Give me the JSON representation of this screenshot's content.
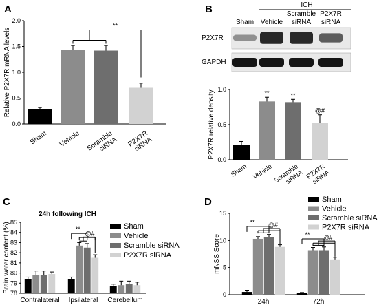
{
  "colors": {
    "sham": "#000000",
    "vehicle": "#8c8c8c",
    "scramble": "#6e6e6e",
    "p2x7r": "#d2d2d2",
    "blot_bg": "#e9e9e9",
    "band": "#151515"
  },
  "chart_data": [
    {
      "panel": "A",
      "type": "bar",
      "ylabel": "Relative P2X7R mRNA levels",
      "ylim": [
        0,
        2.0
      ],
      "yticks": [
        "0.0",
        "0.5",
        "1.0",
        "1.5",
        "2.0"
      ],
      "categories": [
        "Sham",
        "Vehicle",
        "Scramble siRNA",
        "P2X7R siRNA"
      ],
      "category_lines": [
        [
          "Sham"
        ],
        [
          "Vehicle"
        ],
        [
          "Scramble",
          "siRNA"
        ],
        [
          "P2X7R",
          "siRNA"
        ]
      ],
      "values": [
        0.28,
        1.44,
        1.42,
        0.7
      ],
      "errors": [
        0.04,
        0.08,
        0.1,
        0.09
      ],
      "significance": [
        "**"
      ]
    },
    {
      "panel": "B",
      "type": "bar",
      "ylabel": "P2X7R relative density",
      "ylim": [
        0,
        1.0
      ],
      "yticks": [
        "0.0",
        "0.5",
        "1.0"
      ],
      "categories": [
        "Sham",
        "Vehicle",
        "Scramble siRNA",
        "P2X7R siRNA"
      ],
      "category_lines": [
        [
          "Sham"
        ],
        [
          "Vehicle"
        ],
        [
          "Scramble",
          "siRNA"
        ],
        [
          "P2X7R",
          "siRNA"
        ]
      ],
      "values": [
        0.21,
        0.83,
        0.82,
        0.52
      ],
      "errors": [
        0.05,
        0.06,
        0.04,
        0.12
      ],
      "bar_labels": [
        "",
        "**",
        "**",
        "@#"
      ],
      "blot": {
        "group_label": "ICH",
        "lane_headers": [
          [
            "Sham"
          ],
          [
            "Vehicle"
          ],
          [
            "Scramble",
            "siRNA"
          ],
          [
            "P2X7R",
            "siRNA"
          ]
        ],
        "bands": [
          "P2X7R",
          "GAPDH"
        ]
      }
    },
    {
      "panel": "C",
      "type": "bar",
      "title": "24h following ICH",
      "ylabel": "Brain water content (%)",
      "ylim": [
        78,
        85
      ],
      "yticks": [
        "78",
        "79",
        "80",
        "81",
        "82",
        "83",
        "84",
        "85"
      ],
      "categories": [
        "Contralateral",
        "Ipsilateral",
        "Cerebellum"
      ],
      "legend_position": "top-right",
      "series": [
        {
          "name": "Sham",
          "values": [
            79.4,
            79.4,
            78.7
          ],
          "errors": [
            0.2,
            0.2,
            0.2
          ]
        },
        {
          "name": "Vehicle",
          "values": [
            79.8,
            82.7,
            78.8
          ],
          "errors": [
            0.4,
            0.3,
            0.4
          ]
        },
        {
          "name": "Scramble siRNA",
          "values": [
            79.8,
            82.5,
            78.9
          ],
          "errors": [
            0.4,
            0.4,
            0.3
          ]
        },
        {
          "name": "P2X7R siRNA",
          "values": [
            79.9,
            81.5,
            78.8
          ],
          "errors": [
            0.2,
            0.3,
            0.3
          ]
        }
      ],
      "significance": [
        "**",
        "@#"
      ]
    },
    {
      "panel": "D",
      "type": "bar",
      "ylabel": "mNSS Score",
      "ylim": [
        0,
        15
      ],
      "yticks": [
        "0",
        "5",
        "10",
        "15"
      ],
      "categories": [
        "24h",
        "72h"
      ],
      "legend_position": "top-right",
      "series": [
        {
          "name": "Sham",
          "values": [
            0.5,
            0.3
          ],
          "errors": [
            0.2,
            0.1
          ]
        },
        {
          "name": "Vehicle",
          "values": [
            10.3,
            8.2
          ],
          "errors": [
            0.4,
            0.5
          ]
        },
        {
          "name": "Scramble siRNA",
          "values": [
            10.6,
            8.2
          ],
          "errors": [
            0.5,
            0.6
          ]
        },
        {
          "name": "P2X7R siRNA",
          "values": [
            8.8,
            6.5
          ],
          "errors": [
            0.4,
            0.4
          ]
        }
      ],
      "significance": [
        "**",
        "@#"
      ]
    }
  ]
}
